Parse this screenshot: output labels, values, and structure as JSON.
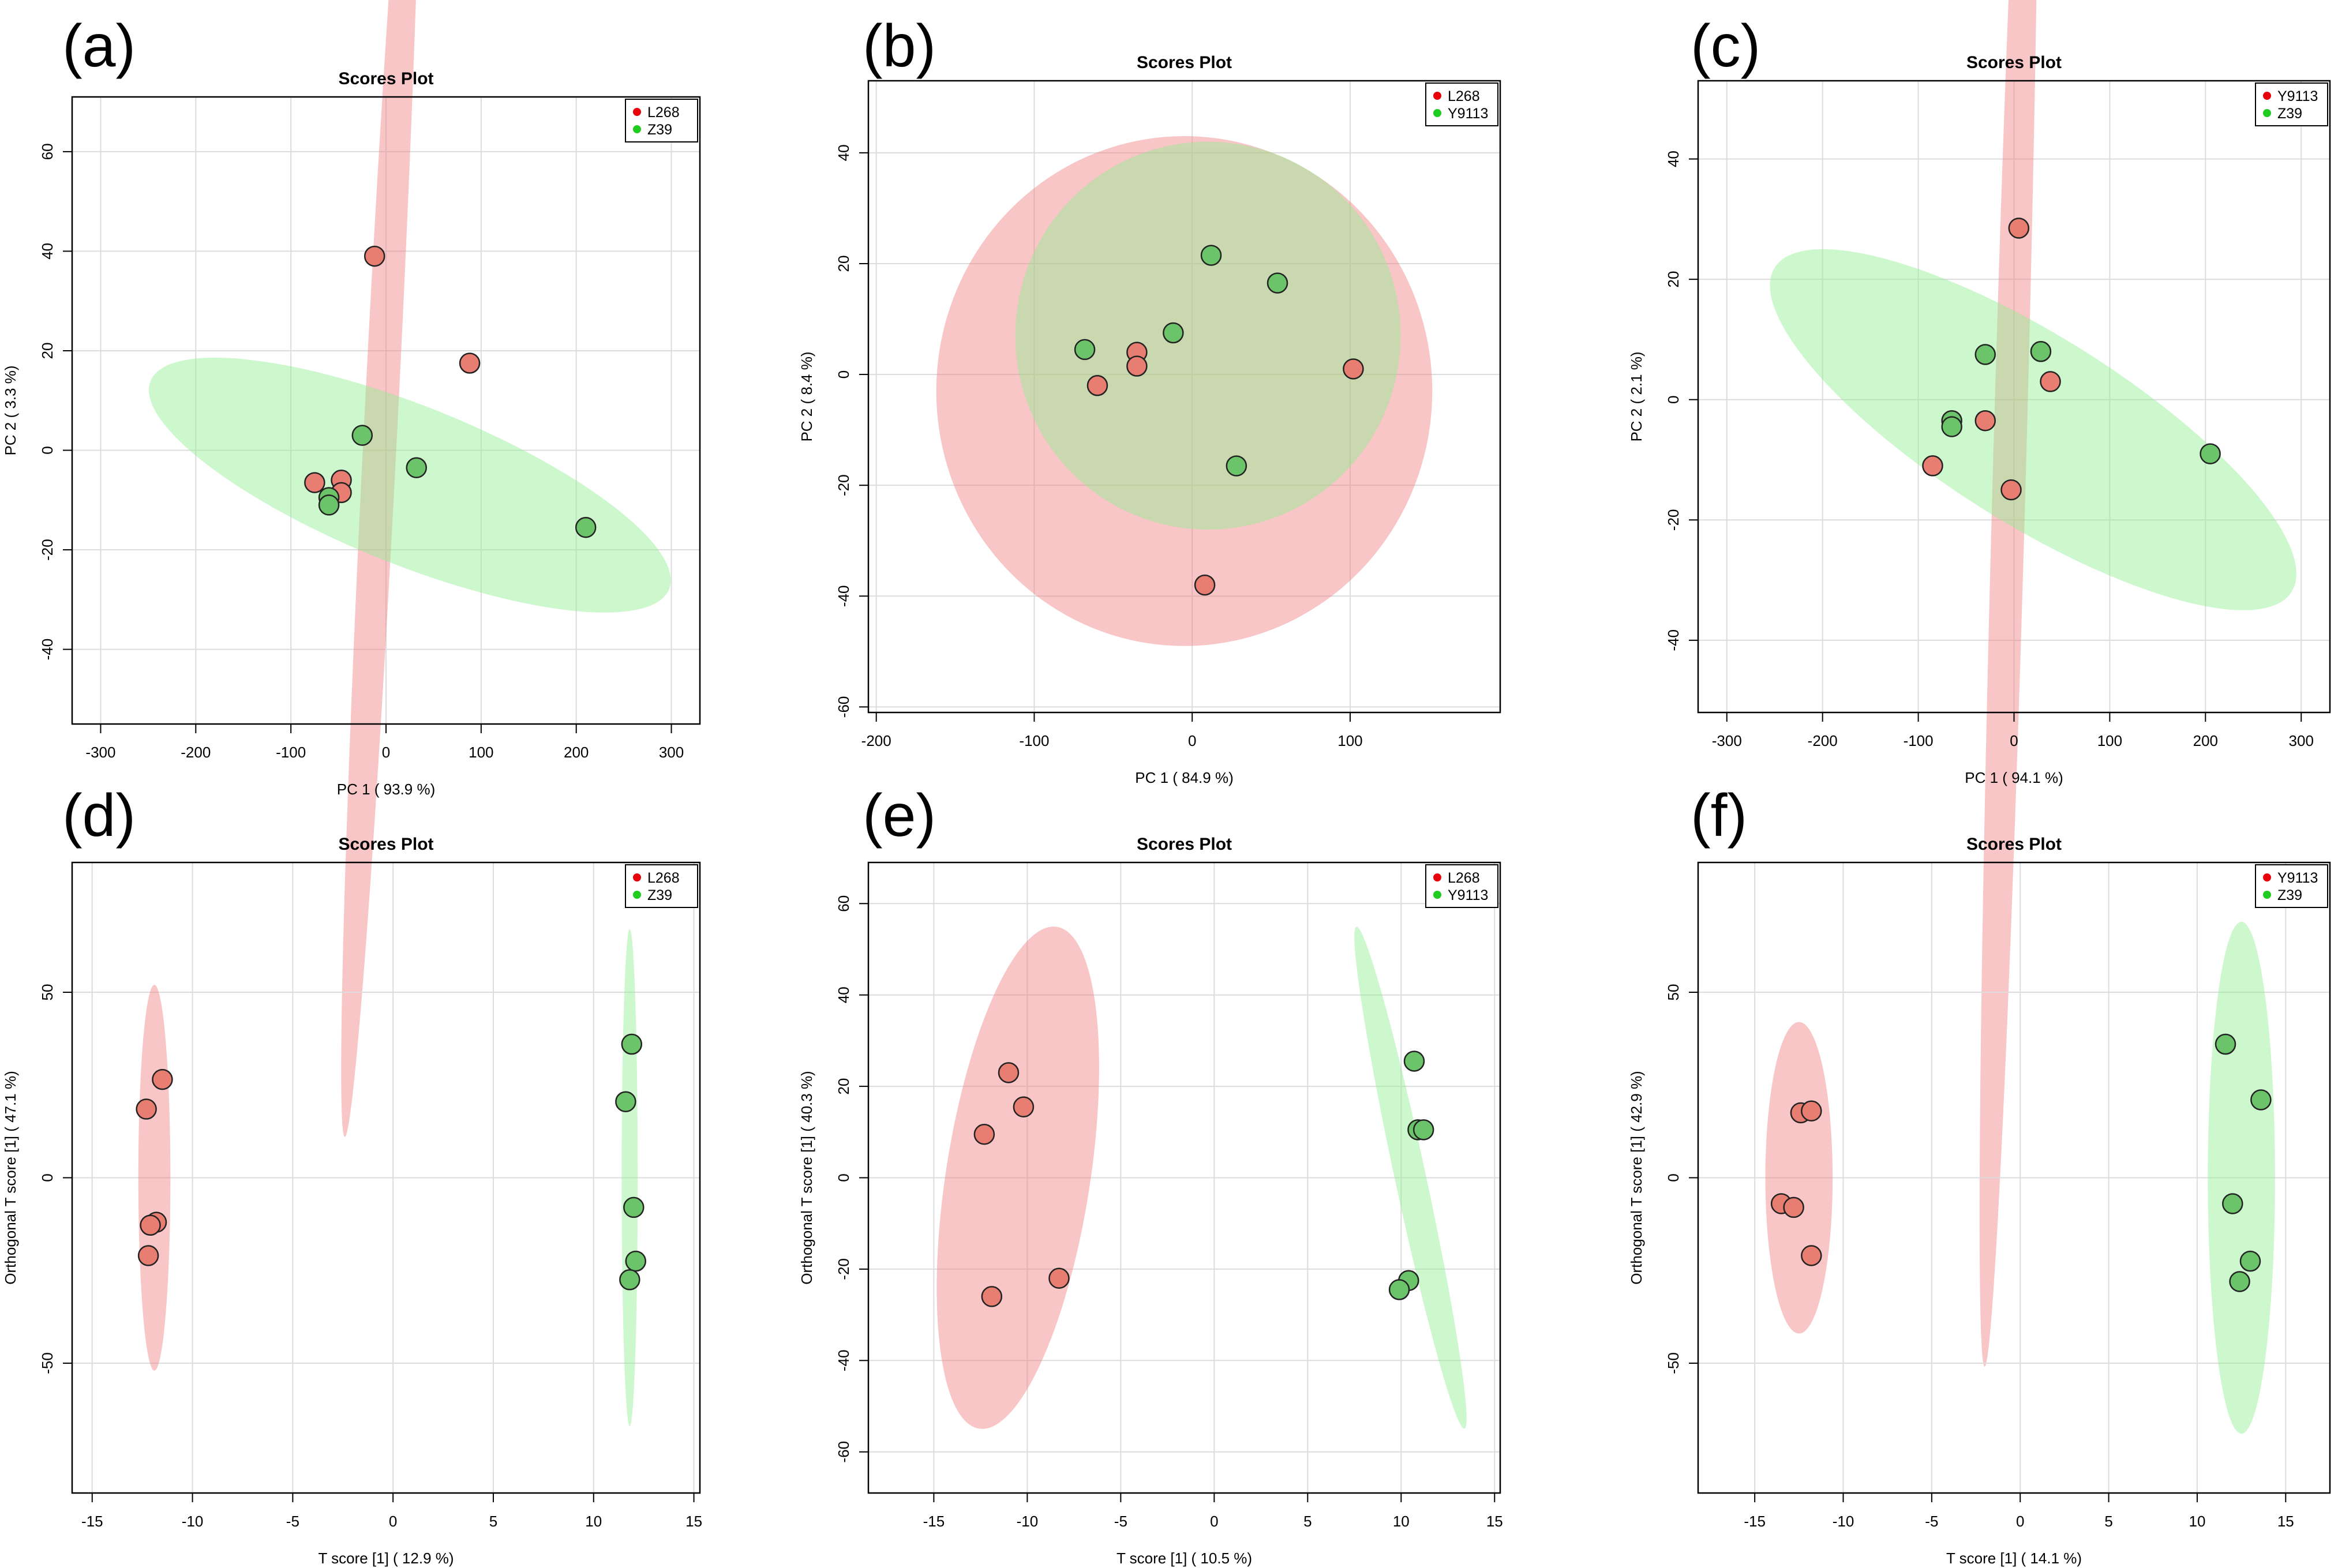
{
  "colors": {
    "red": "#f08080",
    "red_dot": "#e8000b",
    "green": "#90ee90",
    "green_dot": "#1fcc1f",
    "point_red": "#e87d72",
    "point_green": "#6cc46a"
  },
  "chart_data": [
    {
      "panel": "(a)",
      "type": "scatter",
      "title": "Scores Plot",
      "xlabel": "PC 1 ( 93.9 %)",
      "ylabel": "PC 2 ( 3.3 %)",
      "xlim": [
        -330,
        330
      ],
      "ylim": [
        -55,
        71
      ],
      "xticks": [
        -300,
        -200,
        -100,
        0,
        100,
        200,
        300
      ],
      "yticks": [
        -40,
        -20,
        0,
        20,
        40,
        60
      ],
      "xtick_labels": [
        "-300",
        "-200",
        "-100",
        "0",
        "100",
        "200",
        "300"
      ],
      "ytick_labels": [
        "-40",
        "-20",
        "0",
        "20",
        "40",
        "60"
      ],
      "legend": [
        "L268",
        "Z39"
      ],
      "series": [
        {
          "name": "L268",
          "color": "red",
          "points": [
            [
              -12,
              39
            ],
            [
              88,
              17.5
            ],
            [
              -75,
              -6.5
            ],
            [
              -47,
              -6
            ],
            [
              -47,
              -8.5
            ]
          ],
          "ellipse": {
            "cx": -5,
            "cy": 7,
            "rx": 150,
            "ry": 17,
            "angle": 75
          }
        },
        {
          "name": "Z39",
          "color": "green",
          "points": [
            [
              -25,
              3
            ],
            [
              32,
              -3.5
            ],
            [
              210,
              -15.5
            ],
            [
              -60,
              -9.5
            ],
            [
              -60,
              -11
            ]
          ],
          "ellipse": {
            "cx": 25,
            "cy": -7,
            "rx": 275,
            "ry": 17,
            "angle": -4
          }
        }
      ]
    },
    {
      "panel": "(b)",
      "type": "scatter",
      "title": "Scores Plot",
      "xlabel": "PC 1 ( 84.9 %)",
      "ylabel": "PC 2 ( 8.4 %)",
      "xlim": [
        -205,
        195
      ],
      "ylim": [
        -61,
        53
      ],
      "xticks": [
        -200,
        -100,
        0,
        100
      ],
      "yticks": [
        -60,
        -40,
        -20,
        0,
        20,
        40
      ],
      "xtick_labels": [
        "-200",
        "-100",
        "0",
        "100"
      ],
      "ytick_labels": [
        "-60",
        "-40",
        "-20",
        "0",
        "20",
        "40"
      ],
      "legend": [
        "L268",
        "Y9113"
      ],
      "series": [
        {
          "name": "L268",
          "color": "red",
          "points": [
            [
              -35,
              4
            ],
            [
              -35,
              1.5
            ],
            [
              -60,
              -2
            ],
            [
              102,
              1
            ],
            [
              8,
              -38
            ]
          ],
          "ellipse": {
            "cx": -5,
            "cy": -3,
            "rx": 157,
            "ry": 46,
            "angle": 0
          }
        },
        {
          "name": "Y9113",
          "color": "green",
          "points": [
            [
              12,
              21.5
            ],
            [
              54,
              16.5
            ],
            [
              -12,
              7.5
            ],
            [
              -68,
              4.5
            ],
            [
              28,
              -16.5
            ]
          ],
          "ellipse": {
            "cx": 10,
            "cy": 7,
            "rx": 122,
            "ry": 35,
            "angle": 0
          }
        }
      ]
    },
    {
      "panel": "(c)",
      "type": "scatter",
      "title": "Scores Plot",
      "xlabel": "PC 1 ( 94.1 %)",
      "ylabel": "PC 2 ( 2.1 %)",
      "xlim": [
        -330,
        330
      ],
      "ylim": [
        -52,
        53
      ],
      "xticks": [
        -300,
        -200,
        -100,
        0,
        100,
        200,
        300
      ],
      "yticks": [
        -40,
        -20,
        0,
        20,
        40
      ],
      "xtick_labels": [
        "-300",
        "-200",
        "-100",
        "0",
        "100",
        "200",
        "300"
      ],
      "ytick_labels": [
        "-40",
        "-20",
        "0",
        "20",
        "40"
      ],
      "legend": [
        "Y9113",
        "Z39"
      ],
      "series": [
        {
          "name": "Y9113",
          "color": "red",
          "points": [
            [
              5,
              28.5
            ],
            [
              38,
              3
            ],
            [
              -30,
              -3.5
            ],
            [
              -85,
              -11
            ],
            [
              -3,
              -15
            ]
          ],
          "ellipse": {
            "cx": -5,
            "cy": -13,
            "rx": 150,
            "ry": 17,
            "angle": 80
          }
        },
        {
          "name": "Z39",
          "color": "green",
          "points": [
            [
              -30,
              7.5
            ],
            [
              28,
              8
            ],
            [
              -65,
              -3.5
            ],
            [
              -65,
              -4.5
            ],
            [
              205,
              -9
            ]
          ],
          "ellipse": {
            "cx": 20,
            "cy": -5,
            "rx": 276,
            "ry": 18,
            "angle": -5
          }
        }
      ]
    },
    {
      "panel": "(d)",
      "type": "scatter",
      "title": "Scores Plot",
      "xlabel": "T score [1] ( 12.9 %)",
      "ylabel": "Orthogonal T score [1] ( 47.1 %)",
      "xlim": [
        -16,
        15.3
      ],
      "ylim": [
        -85,
        85
      ],
      "xticks": [
        -15,
        -10,
        -5,
        0,
        5,
        10,
        15
      ],
      "yticks": [
        -50,
        0,
        50
      ],
      "xtick_labels": [
        "-15",
        "-10",
        "-5",
        "0",
        "5",
        "10",
        "15"
      ],
      "ytick_labels": [
        "-50",
        "0",
        "50"
      ],
      "legend": [
        "L268",
        "Z39"
      ],
      "series": [
        {
          "name": "L268",
          "color": "red",
          "points": [
            [
              -11.5,
              26.5
            ],
            [
              -12.3,
              18.5
            ],
            [
              -11.8,
              -12
            ],
            [
              -12.1,
              -12.8
            ],
            [
              -12.2,
              -21
            ]
          ],
          "ellipse": {
            "cx": -11.9,
            "cy": 0,
            "rx": 0.8,
            "ry": 52,
            "angle": 0
          }
        },
        {
          "name": "Z39",
          "color": "green",
          "points": [
            [
              11.9,
              36
            ],
            [
              11.6,
              20.5
            ],
            [
              12,
              -8
            ],
            [
              12.1,
              -22.5
            ],
            [
              11.8,
              -27.5
            ]
          ],
          "ellipse": {
            "cx": 11.8,
            "cy": 0,
            "rx": 0.4,
            "ry": 67,
            "angle": 0
          }
        }
      ]
    },
    {
      "panel": "(e)",
      "type": "scatter",
      "title": "Scores Plot",
      "xlabel": "T score [1] ( 10.5 %)",
      "ylabel": "Orthogonal T score [1] ( 40.3 %)",
      "xlim": [
        -18.5,
        15.3
      ],
      "ylim": [
        -69,
        69
      ],
      "xticks": [
        -15,
        -10,
        -5,
        0,
        5,
        10,
        15
      ],
      "yticks": [
        -60,
        -40,
        -20,
        0,
        20,
        40,
        60
      ],
      "xtick_labels": [
        "-15",
        "-10",
        "-5",
        "0",
        "5",
        "10",
        "15"
      ],
      "ytick_labels": [
        "-60",
        "-40",
        "-20",
        "0",
        "20",
        "40",
        "60"
      ],
      "legend": [
        "L268",
        "Y9113"
      ],
      "series": [
        {
          "name": "L268",
          "color": "red",
          "points": [
            [
              -11,
              23
            ],
            [
              -10.2,
              15.5
            ],
            [
              -12.3,
              9.5
            ],
            [
              -8.3,
              -22
            ],
            [
              -11.9,
              -26
            ]
          ],
          "ellipse": {
            "cx": -10.5,
            "cy": 0,
            "rx": 3.9,
            "ry": 55,
            "angle": -2
          }
        },
        {
          "name": "Y9113",
          "color": "green",
          "points": [
            [
              10.7,
              25.5
            ],
            [
              10.9,
              10.5
            ],
            [
              11.2,
              10.5
            ],
            [
              10.4,
              -22.5
            ],
            [
              9.9,
              -24.5
            ]
          ],
          "ellipse": {
            "cx": 10.5,
            "cy": 0,
            "rx": 0.85,
            "ry": 55,
            "angle": 3
          }
        }
      ]
    },
    {
      "panel": "(f)",
      "type": "scatter",
      "title": "Scores Plot",
      "xlabel": "T score [1] ( 14.1 %)",
      "ylabel": "Orthogonal T score [1] ( 42.9 %)",
      "xlim": [
        -18.2,
        17.5
      ],
      "ylim": [
        -85,
        85
      ],
      "xticks": [
        -15,
        -10,
        -5,
        0,
        5,
        10,
        15
      ],
      "yticks": [
        -50,
        0,
        50
      ],
      "xtick_labels": [
        "-15",
        "-10",
        "-5",
        "0",
        "5",
        "10",
        "15"
      ],
      "ytick_labels": [
        "-50",
        "0",
        "50"
      ],
      "legend": [
        "Y9113",
        "Z39"
      ],
      "series": [
        {
          "name": "Y9113",
          "color": "red",
          "points": [
            [
              -12.4,
              17.5
            ],
            [
              -11.8,
              18
            ],
            [
              -13.5,
              -7
            ],
            [
              -12.8,
              -8
            ],
            [
              -11.8,
              -21
            ]
          ],
          "ellipse": {
            "cx": -12.5,
            "cy": 0,
            "rx": 1.9,
            "ry": 42,
            "angle": 0
          }
        },
        {
          "name": "Z39",
          "color": "green",
          "points": [
            [
              11.6,
              36
            ],
            [
              13.6,
              21
            ],
            [
              12,
              -7
            ],
            [
              13,
              -22.5
            ],
            [
              12.4,
              -28
            ]
          ],
          "ellipse": {
            "cx": 12.5,
            "cy": 0,
            "rx": 1.9,
            "ry": 69,
            "angle": 0
          }
        }
      ]
    }
  ]
}
